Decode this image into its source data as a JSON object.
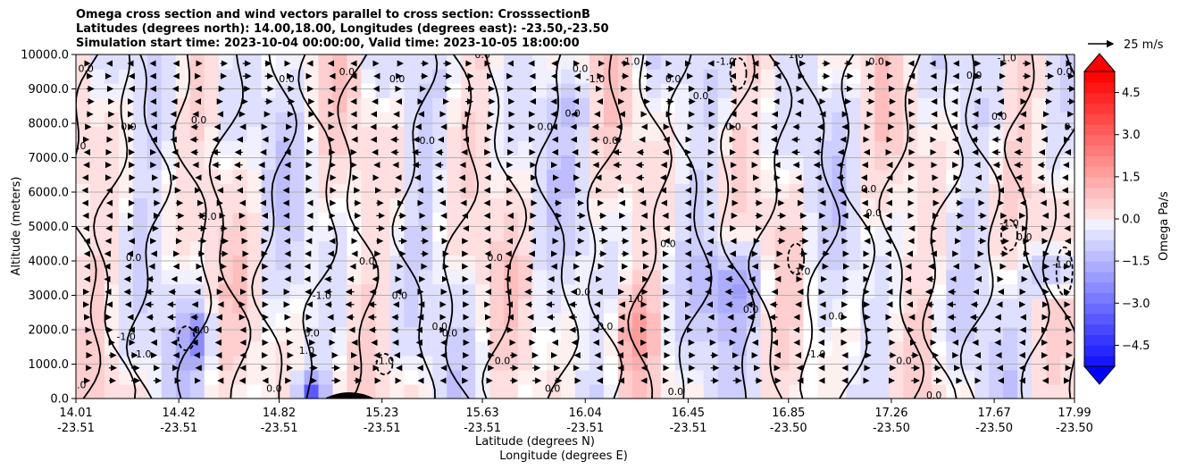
{
  "header": {
    "title_line1": "Omega cross section and wind vectors parallel to cross section: CrosssectionB",
    "title_line2": "Latitudes (degrees north): 14.00,18.00, Longitudes (degrees east): -23.50,-23.50",
    "title_line3": "Simulation start time: 2023-10-04 00:00:00, Valid time: 2023-10-05 18:00:00"
  },
  "chart_data": {
    "type": "heatmap",
    "title": "Omega cross section and wind vectors parallel to cross section: CrosssectionB",
    "ylabel": "Altitude (meters)",
    "xlabel_line1": "Latitude (degrees N)",
    "xlabel_line2": "Longitude (degrees E)",
    "ylim": [
      0,
      10000
    ],
    "xlim": [
      14.01,
      17.99
    ],
    "grid": "horizontal",
    "y_ticks": [
      {
        "value": 0,
        "label": "0.0"
      },
      {
        "value": 1000,
        "label": "1000.0"
      },
      {
        "value": 2000,
        "label": "2000.0"
      },
      {
        "value": 3000,
        "label": "3000.0"
      },
      {
        "value": 4000,
        "label": "4000.0"
      },
      {
        "value": 5000,
        "label": "5000.0"
      },
      {
        "value": 6000,
        "label": "6000.0"
      },
      {
        "value": 7000,
        "label": "7000.0"
      },
      {
        "value": 8000,
        "label": "8000.0"
      },
      {
        "value": 9000,
        "label": "9000.0"
      },
      {
        "value": 10000,
        "label": "10000.0"
      }
    ],
    "x_ticks": [
      {
        "value": 14.01,
        "lat": "14.01",
        "lon": "-23.51"
      },
      {
        "value": 14.42,
        "lat": "14.42",
        "lon": "-23.51"
      },
      {
        "value": 14.82,
        "lat": "14.82",
        "lon": "-23.51"
      },
      {
        "value": 15.23,
        "lat": "15.23",
        "lon": "-23.51"
      },
      {
        "value": 15.63,
        "lat": "15.63",
        "lon": "-23.51"
      },
      {
        "value": 16.04,
        "lat": "16.04",
        "lon": "-23.51"
      },
      {
        "value": 16.45,
        "lat": "16.45",
        "lon": "-23.51"
      },
      {
        "value": 16.85,
        "lat": "16.85",
        "lon": "-23.50"
      },
      {
        "value": 17.26,
        "lat": "17.26",
        "lon": "-23.50"
      },
      {
        "value": 17.67,
        "lat": "17.67",
        "lon": "-23.50"
      },
      {
        "value": 17.99,
        "lat": "17.99",
        "lon": "-23.50"
      }
    ],
    "colorbar": {
      "label": "Omega Pa/s",
      "range": [
        -5.25,
        5.25
      ],
      "extend": "both",
      "ticks": [
        {
          "value": 4.5,
          "label": "4.5"
        },
        {
          "value": 3.0,
          "label": "3.0"
        },
        {
          "value": 1.5,
          "label": "1.5"
        },
        {
          "value": 0.0,
          "label": "0.0"
        },
        {
          "value": -1.5,
          "label": "−1.5"
        },
        {
          "value": -3.0,
          "label": "−3.0"
        },
        {
          "value": -4.5,
          "label": "−4.5"
        }
      ],
      "positive_color": "#ff0000",
      "negative_color": "#0000ff"
    },
    "wind_key": {
      "label": "25 m/s",
      "speed": 25
    },
    "contour_levels": [
      -1.0,
      0.0,
      1.0
    ],
    "contour_labels": [
      {
        "x": 14.05,
        "y": 9500,
        "text": "0.0"
      },
      {
        "x": 14.02,
        "y": 7250,
        "text": "0.0"
      },
      {
        "x": 14.22,
        "y": 7800,
        "text": "0.0"
      },
      {
        "x": 14.5,
        "y": 8000,
        "text": "0.0"
      },
      {
        "x": 14.24,
        "y": 4000,
        "text": "0.0"
      },
      {
        "x": 14.54,
        "y": 5200,
        "text": "0.0"
      },
      {
        "x": 14.21,
        "y": 1700,
        "text": "-1.0"
      },
      {
        "x": 14.28,
        "y": 1200,
        "text": "1.0"
      },
      {
        "x": 14.51,
        "y": 1900,
        "text": "0.0"
      },
      {
        "x": 14.02,
        "y": 300,
        "text": "0.0"
      },
      {
        "x": 14.85,
        "y": 9200,
        "text": "0.0"
      },
      {
        "x": 15.09,
        "y": 9400,
        "text": "0.0"
      },
      {
        "x": 15.29,
        "y": 9200,
        "text": "0.0"
      },
      {
        "x": 15.17,
        "y": 3900,
        "text": "0.0"
      },
      {
        "x": 14.99,
        "y": 2900,
        "text": "-1.0"
      },
      {
        "x": 14.95,
        "y": 1800,
        "text": "0.0"
      },
      {
        "x": 14.93,
        "y": 1300,
        "text": "1.0"
      },
      {
        "x": 15.3,
        "y": 2900,
        "text": "0.0"
      },
      {
        "x": 15.24,
        "y": 1000,
        "text": "-1.0"
      },
      {
        "x": 14.8,
        "y": 200,
        "text": "0.0"
      },
      {
        "x": 15.41,
        "y": 7400,
        "text": "0.0"
      },
      {
        "x": 15.68,
        "y": 4000,
        "text": "0.0"
      },
      {
        "x": 15.46,
        "y": 2000,
        "text": "0.0"
      },
      {
        "x": 15.5,
        "y": 1800,
        "text": "0.0"
      },
      {
        "x": 15.71,
        "y": 1000,
        "text": "0.0"
      },
      {
        "x": 15.63,
        "y": 9900,
        "text": "0.0"
      },
      {
        "x": 16.02,
        "y": 9500,
        "text": "0.0"
      },
      {
        "x": 16.08,
        "y": 9200,
        "text": "-1.0"
      },
      {
        "x": 16.22,
        "y": 9700,
        "text": "-1.0"
      },
      {
        "x": 15.99,
        "y": 8200,
        "text": "0.0"
      },
      {
        "x": 15.88,
        "y": 7800,
        "text": "0.0"
      },
      {
        "x": 16.14,
        "y": 7400,
        "text": "0.0"
      },
      {
        "x": 16.03,
        "y": 3000,
        "text": "0.0"
      },
      {
        "x": 16.24,
        "y": 2800,
        "text": "1.0"
      },
      {
        "x": 16.37,
        "y": 4400,
        "text": "0.0"
      },
      {
        "x": 16.12,
        "y": 2000,
        "text": "0.0"
      },
      {
        "x": 15.91,
        "y": 200,
        "text": "0.0"
      },
      {
        "x": 16.4,
        "y": 100,
        "text": "0.0"
      },
      {
        "x": 16.39,
        "y": 9200,
        "text": "0.0"
      },
      {
        "x": 16.5,
        "y": 8700,
        "text": "0.0"
      },
      {
        "x": 16.6,
        "y": 9700,
        "text": "-1.0"
      },
      {
        "x": 16.63,
        "y": 7800,
        "text": "0.0"
      },
      {
        "x": 16.7,
        "y": 2500,
        "text": "0.0"
      },
      {
        "x": 16.9,
        "y": 3600,
        "text": "-1.0"
      },
      {
        "x": 16.88,
        "y": 9900,
        "text": "1.0"
      },
      {
        "x": 16.96,
        "y": 1200,
        "text": "-1.0"
      },
      {
        "x": 17.04,
        "y": 2300,
        "text": "0.0"
      },
      {
        "x": 17.17,
        "y": 6000,
        "text": "0.0"
      },
      {
        "x": 17.19,
        "y": 5300,
        "text": "0.0"
      },
      {
        "x": 17.2,
        "y": 9700,
        "text": "0.0"
      },
      {
        "x": 17.59,
        "y": 9300,
        "text": "0.0"
      },
      {
        "x": 17.69,
        "y": 8100,
        "text": "0.0"
      },
      {
        "x": 17.72,
        "y": 9800,
        "text": "-1.0"
      },
      {
        "x": 17.95,
        "y": 9400,
        "text": "0.0"
      },
      {
        "x": 17.98,
        "y": 7800,
        "text": "0.0"
      },
      {
        "x": 17.73,
        "y": 5000,
        "text": "-1.0"
      },
      {
        "x": 17.79,
        "y": 4600,
        "text": "0.0"
      },
      {
        "x": 17.94,
        "y": 3800,
        "text": "-1.0"
      },
      {
        "x": 17.31,
        "y": 1000,
        "text": "0.0"
      },
      {
        "x": 17.43,
        "y": 0,
        "text": "0.0"
      }
    ]
  }
}
